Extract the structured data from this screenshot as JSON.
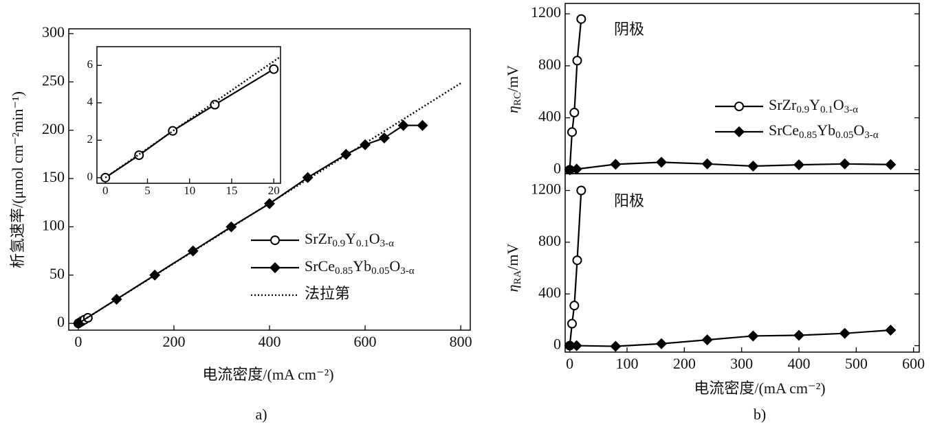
{
  "chart_data": [
    {
      "type": "line",
      "xlabel": "电流密度/(mA cm⁻²)",
      "ylabel": "析氢速率/(μmol cm⁻²min⁻¹)",
      "caption": "a)",
      "xlim": [
        -20,
        820
      ],
      "ylim": [
        -7,
        305
      ],
      "xticks": [
        0,
        200,
        400,
        600,
        800
      ],
      "yticks": [
        0,
        50,
        100,
        150,
        200,
        250,
        300
      ],
      "series": [
        {
          "name": "SrZr0.9Y0.1O3-α",
          "color": "#000000",
          "marker": "circle",
          "linestyle": "solid",
          "x": [
            0,
            4,
            8,
            13,
            20
          ],
          "values": [
            0,
            1.2,
            2.5,
            3.9,
            5.8
          ]
        },
        {
          "name": "SrCe0.85Yb0.05O3-α",
          "color": "#000000",
          "marker": "diamond",
          "linestyle": "solid",
          "x": [
            0,
            80,
            160,
            240,
            320,
            400,
            480,
            560,
            600,
            640,
            680,
            720
          ],
          "values": [
            0,
            25,
            50,
            75,
            100,
            124,
            151,
            175,
            185,
            192,
            205,
            205
          ]
        },
        {
          "name": "法拉第",
          "color": "#000000",
          "marker": "none",
          "linestyle": "dotted",
          "x": [
            0,
            800
          ],
          "values": [
            0,
            248.7
          ]
        }
      ]
    },
    {
      "type": "line",
      "xlim": [
        -1,
        20.8
      ],
      "ylim": [
        -0.3,
        7
      ],
      "xticks": [
        0,
        5,
        10,
        15,
        20
      ],
      "yticks": [
        0,
        2,
        4,
        6
      ],
      "series": [
        {
          "color": "#000000",
          "marker": "circle",
          "linestyle": "solid",
          "x": [
            0,
            4,
            8,
            13,
            20
          ],
          "values": [
            0,
            1.2,
            2.5,
            3.9,
            5.8
          ]
        },
        {
          "color": "#000000",
          "marker": "none",
          "linestyle": "dotted",
          "x": [
            0,
            20.8
          ],
          "values": [
            0,
            6.47
          ]
        }
      ]
    },
    {
      "type": "line",
      "ylabel": "ηRC/mV",
      "annotation": "阴极",
      "xlim": [
        -8,
        610
      ],
      "ylim": [
        -30,
        1280
      ],
      "yticks": [
        0,
        400,
        800,
        1200
      ],
      "series": [
        {
          "name": "SrZr0.9Y0.1O3-α",
          "color": "#000000",
          "marker": "circle",
          "linestyle": "solid",
          "x": [
            0,
            4,
            8,
            13,
            20
          ],
          "values": [
            0,
            290,
            440,
            840,
            1160
          ]
        },
        {
          "name": "SrCe0.85Yb0.05O3-α",
          "color": "#000000",
          "marker": "diamond",
          "linestyle": "solid",
          "x": [
            0,
            12,
            80,
            160,
            240,
            320,
            400,
            480,
            560
          ],
          "values": [
            0,
            5,
            42,
            58,
            45,
            28,
            38,
            45,
            40
          ]
        }
      ]
    },
    {
      "type": "line",
      "ylabel": "ηRA/mV",
      "annotation": "阳极",
      "xlabel": "电流密度/(mA cm⁻²)",
      "caption": "b)",
      "xlim": [
        -8,
        610
      ],
      "ylim": [
        -50,
        1330
      ],
      "xticks": [
        0,
        100,
        200,
        300,
        400,
        500,
        600
      ],
      "yticks": [
        0,
        400,
        800,
        1200
      ],
      "series": [
        {
          "color": "#000000",
          "marker": "circle",
          "linestyle": "solid",
          "x": [
            0,
            4,
            8,
            13,
            20
          ],
          "values": [
            0,
            170,
            310,
            660,
            1200
          ]
        },
        {
          "color": "#000000",
          "marker": "diamond",
          "linestyle": "solid",
          "x": [
            0,
            12,
            80,
            160,
            240,
            320,
            400,
            480,
            560
          ],
          "values": [
            0,
            0,
            -5,
            15,
            45,
            75,
            80,
            95,
            120
          ]
        }
      ]
    }
  ]
}
